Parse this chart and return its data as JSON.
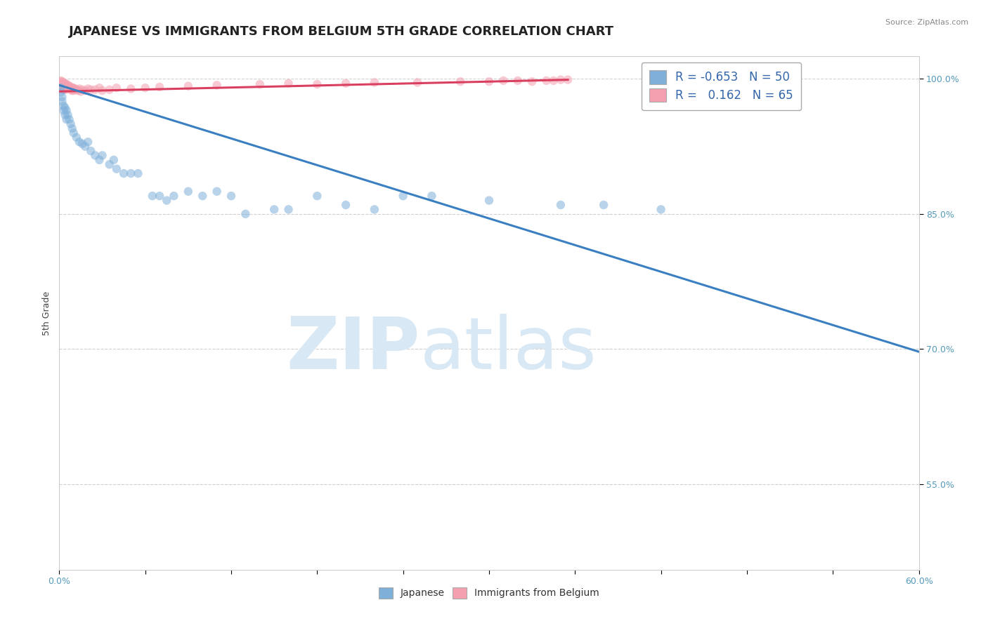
{
  "title": "JAPANESE VS IMMIGRANTS FROM BELGIUM 5TH GRADE CORRELATION CHART",
  "source_text": "Source: ZipAtlas.com",
  "ylabel": "5th Grade",
  "xlim": [
    0.0,
    0.6
  ],
  "ylim": [
    0.455,
    1.025
  ],
  "xticks": [
    0.0,
    0.06,
    0.12,
    0.18,
    0.24,
    0.3,
    0.36,
    0.42,
    0.48,
    0.54,
    0.6
  ],
  "xtick_labels": [
    "0.0%",
    "",
    "",
    "",
    "",
    "",
    "",
    "",
    "",
    "",
    "60.0%"
  ],
  "yticks": [
    0.55,
    0.7,
    0.85,
    1.0
  ],
  "ytick_labels": [
    "55.0%",
    "70.0%",
    "85.0%",
    "100.0%"
  ],
  "blue_color": "#7EB0D9",
  "pink_color": "#F4A0B0",
  "blue_line_color": "#3A7FC1",
  "pink_line_color": "#D94060",
  "watermark_text": "ZIPatlas",
  "watermark_color": "#D8E8F5",
  "R_blue": -0.653,
  "N_blue": 50,
  "R_pink": 0.162,
  "N_pink": 65,
  "legend_label_blue": "Japanese",
  "legend_label_pink": "Immigrants from Belgium",
  "blue_scatter_x": [
    0.001,
    0.001,
    0.002,
    0.002,
    0.003,
    0.003,
    0.004,
    0.004,
    0.005,
    0.005,
    0.006,
    0.007,
    0.008,
    0.009,
    0.01,
    0.012,
    0.014,
    0.016,
    0.018,
    0.02,
    0.022,
    0.025,
    0.028,
    0.03,
    0.035,
    0.038,
    0.04,
    0.045,
    0.05,
    0.055,
    0.065,
    0.07,
    0.075,
    0.08,
    0.09,
    0.1,
    0.11,
    0.12,
    0.13,
    0.15,
    0.16,
    0.18,
    0.2,
    0.22,
    0.24,
    0.26,
    0.3,
    0.35,
    0.38,
    0.42
  ],
  "blue_scatter_y": [
    0.99,
    0.985,
    0.975,
    0.98,
    0.97,
    0.965,
    0.968,
    0.96,
    0.965,
    0.955,
    0.96,
    0.955,
    0.95,
    0.945,
    0.94,
    0.935,
    0.93,
    0.928,
    0.925,
    0.93,
    0.92,
    0.915,
    0.91,
    0.915,
    0.905,
    0.91,
    0.9,
    0.895,
    0.895,
    0.895,
    0.87,
    0.87,
    0.865,
    0.87,
    0.875,
    0.87,
    0.875,
    0.87,
    0.85,
    0.855,
    0.855,
    0.87,
    0.86,
    0.855,
    0.87,
    0.87,
    0.865,
    0.86,
    0.86,
    0.855
  ],
  "pink_scatter_x": [
    0.001,
    0.001,
    0.001,
    0.001,
    0.002,
    0.002,
    0.002,
    0.002,
    0.002,
    0.003,
    0.003,
    0.003,
    0.003,
    0.003,
    0.004,
    0.004,
    0.004,
    0.004,
    0.005,
    0.005,
    0.005,
    0.006,
    0.006,
    0.007,
    0.007,
    0.008,
    0.008,
    0.009,
    0.009,
    0.01,
    0.01,
    0.011,
    0.012,
    0.013,
    0.014,
    0.015,
    0.016,
    0.018,
    0.02,
    0.022,
    0.025,
    0.028,
    0.03,
    0.035,
    0.04,
    0.05,
    0.06,
    0.07,
    0.09,
    0.11,
    0.14,
    0.16,
    0.18,
    0.2,
    0.22,
    0.25,
    0.28,
    0.3,
    0.31,
    0.32,
    0.33,
    0.34,
    0.345,
    0.35,
    0.355
  ],
  "pink_scatter_y": [
    0.998,
    0.996,
    0.994,
    0.992,
    0.997,
    0.995,
    0.993,
    0.99,
    0.988,
    0.996,
    0.994,
    0.992,
    0.99,
    0.988,
    0.995,
    0.993,
    0.991,
    0.988,
    0.994,
    0.992,
    0.989,
    0.993,
    0.99,
    0.992,
    0.989,
    0.991,
    0.988,
    0.99,
    0.987,
    0.99,
    0.987,
    0.989,
    0.988,
    0.987,
    0.989,
    0.986,
    0.988,
    0.987,
    0.989,
    0.988,
    0.988,
    0.99,
    0.987,
    0.988,
    0.99,
    0.989,
    0.99,
    0.991,
    0.992,
    0.993,
    0.994,
    0.995,
    0.994,
    0.995,
    0.996,
    0.996,
    0.997,
    0.997,
    0.998,
    0.998,
    0.997,
    0.998,
    0.998,
    0.999,
    0.999
  ],
  "blue_trend_x": [
    0.0,
    0.6
  ],
  "blue_trend_y": [
    0.993,
    0.697
  ],
  "pink_trend_x": [
    0.0,
    0.355
  ],
  "pink_trend_y": [
    0.986,
    0.999
  ],
  "title_fontsize": 13,
  "axis_label_fontsize": 9,
  "tick_fontsize": 9,
  "dot_size": 80,
  "dot_alpha": 0.55,
  "grid_color": "#CCCCCC",
  "background_color": "#FFFFFF",
  "tick_color": "#5599BB",
  "ylabel_color": "#444444",
  "title_color": "#222222",
  "source_color": "#888888"
}
